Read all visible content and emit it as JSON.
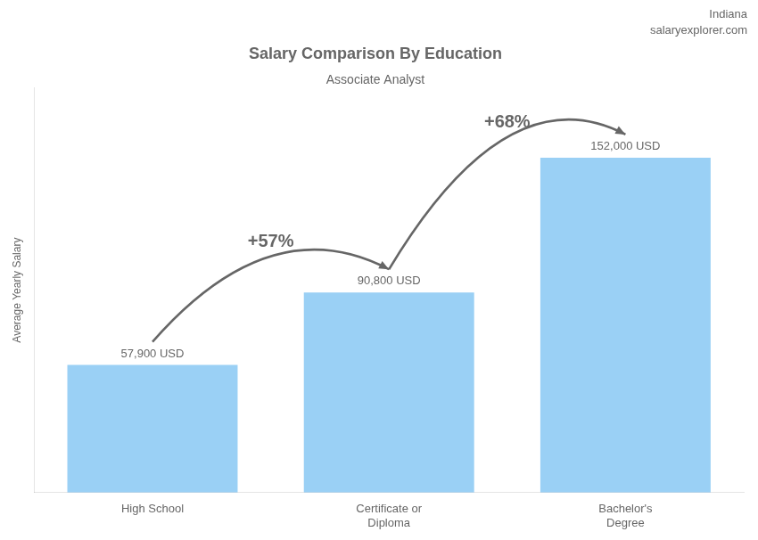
{
  "chart_data": {
    "type": "bar",
    "title": "Salary Comparison By Education",
    "subtitle": "Associate Analyst",
    "categories": [
      "High School",
      "Certificate or\nDiploma",
      "Bachelor's\nDegree"
    ],
    "values": [
      57900,
      90800,
      152000
    ],
    "value_labels": [
      "57,900 USD",
      "90,800 USD",
      "152,000 USD"
    ],
    "data_labels": true,
    "ylabel": "Average Yearly Salary",
    "ylim": [
      0,
      183750
    ],
    "tick_labels": "x",
    "grid": false,
    "annotations": [
      {
        "text": "Indiana"
      },
      {
        "text": "salaryexplorer.com"
      },
      {
        "text": "+57%",
        "from": "High School",
        "to": "Certificate or\nDiploma"
      },
      {
        "text": "+68%",
        "from": "Certificate or\nDiploma",
        "to": "Bachelor's\nDegree"
      }
    ]
  }
}
